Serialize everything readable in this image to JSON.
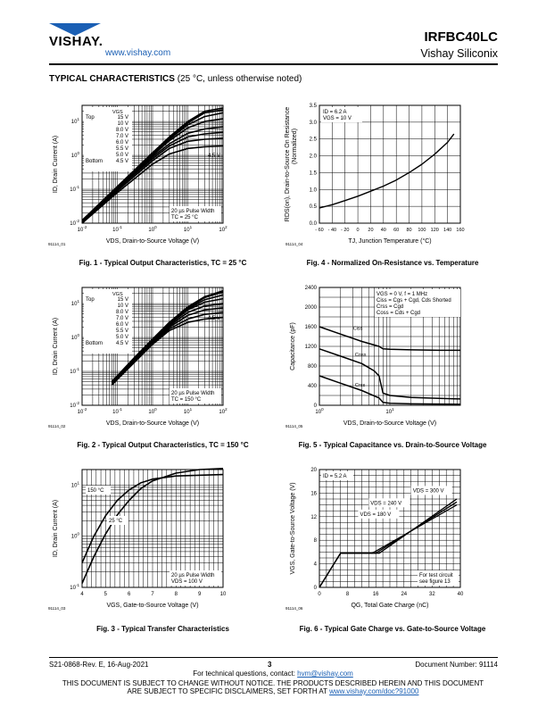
{
  "header": {
    "logo_text": "VISHAY.",
    "url": "www.vishay.com",
    "part_number": "IRFBC40LC",
    "company": "Vishay Siliconix"
  },
  "section": {
    "title": "TYPICAL CHARACTERISTICS",
    "subtitle": "(25 °C, unless otherwise noted)"
  },
  "figures": {
    "fig1": {
      "caption": "Fig. 1 - Typical Output Characteristics, TC = 25 °C",
      "code": "91114_01",
      "xlabel": "VDS, Drain-to-Source Voltage (V)",
      "ylabel": "ID, Drain Current (A)",
      "note": "20 µs Pulse Width\nTC = 25 °C"
    },
    "fig2": {
      "caption": "Fig. 2 - Typical Output Characteristics, TC = 150 °C",
      "code": "91114_02",
      "xlabel": "VDS, Drain-to-Source Voltage (V)",
      "ylabel": "ID, Drain Current (A)",
      "note": "20 µs Pulse Width\nTC = 150 °C"
    },
    "fig3": {
      "caption": "Fig. 3 - Typical Transfer Characteristics",
      "code": "91114_03",
      "xlabel": "VGS, Gate-to-Source Voltage (V)",
      "ylabel": "ID, Drain Current (A)",
      "note": "20 µs Pulse Width\nVDS = 100 V"
    },
    "fig4": {
      "caption": "Fig. 4 - Normalized On-Resistance vs. Temperature",
      "code": "91114_04",
      "xlabel": "TJ, Junction Temperature (°C)",
      "ylabel": "RDS(on), Drain-to-Source On Resistance (Normalized)",
      "note": "ID = 6.2 A\nVGS = 10 V"
    },
    "fig5": {
      "caption": "Fig. 5 - Typical Capacitance vs. Drain-to-Source Voltage",
      "code": "91114_05",
      "xlabel": "VDS, Drain-to-Source Voltage (V)",
      "ylabel": "Capacitance (pF)",
      "note": "VGS = 0 V, f = 1 MHz\nCiss = Cgs + Cgd, Cds Shorted\nCrss = Cgd\nCoss = Cds + Cgd"
    },
    "fig6": {
      "caption": "Fig. 6 - Typical Gate Charge vs. Gate-to-Source Voltage",
      "code": "91114_06",
      "xlabel": "QG, Total Gate Charge (nC)",
      "ylabel": "VGS, Gate-to-Source Voltage (V)",
      "note": "ID = 5.2 A",
      "note2": "For test circuit\nsee figure 13"
    }
  },
  "legend_vgs": {
    "header": "VGS",
    "top_label": "Top",
    "bottom_label": "Bottom",
    "values": [
      "15 V",
      "10 V",
      "8.0 V",
      "7.0 V",
      "6.0 V",
      "5.5 V",
      "5.0 V",
      "4.5 V"
    ],
    "curve_label": "4.5 V"
  },
  "chart_data": [
    {
      "id": "fig1",
      "type": "line",
      "title": "Typical Output Characteristics, TC = 25 °C",
      "xlabel": "VDS, Drain-to-Source Voltage (V)",
      "ylabel": "ID, Drain Current (A)",
      "xscale": "log",
      "yscale": "log",
      "xlim": [
        0.01,
        100
      ],
      "ylim": [
        0.01,
        30
      ],
      "x_ticks": [
        "10-2",
        "10-1",
        "100",
        "101",
        "102"
      ],
      "y_ticks": [
        "101",
        "100",
        "10-1",
        "10-2"
      ],
      "series": [
        {
          "name": "15 V",
          "x": [
            0.01,
            0.1,
            1,
            3,
            10,
            30,
            100
          ],
          "y": [
            0.012,
            0.12,
            1.2,
            3.5,
            10,
            20,
            25
          ]
        },
        {
          "name": "10 V",
          "x": [
            0.01,
            0.1,
            1,
            3,
            10,
            30,
            100
          ],
          "y": [
            0.012,
            0.12,
            1.1,
            3.3,
            9,
            18,
            22
          ]
        },
        {
          "name": "8.0 V",
          "x": [
            0.01,
            0.1,
            1,
            3,
            10,
            30,
            100
          ],
          "y": [
            0.011,
            0.11,
            1.05,
            3,
            8,
            14,
            18
          ]
        },
        {
          "name": "7.0 V",
          "x": [
            0.01,
            0.1,
            1,
            3,
            10,
            30,
            100
          ],
          "y": [
            0.011,
            0.11,
            1,
            2.7,
            6.5,
            10,
            12
          ]
        },
        {
          "name": "6.0 V",
          "x": [
            0.01,
            0.1,
            1,
            3,
            10,
            30,
            100
          ],
          "y": [
            0.01,
            0.1,
            0.9,
            2.2,
            4.5,
            6,
            7
          ]
        },
        {
          "name": "5.5 V",
          "x": [
            0.01,
            0.1,
            1,
            3,
            10,
            30,
            100
          ],
          "y": [
            0.01,
            0.1,
            0.8,
            1.9,
            3.5,
            4.3,
            4.8
          ]
        },
        {
          "name": "5.0 V",
          "x": [
            0.01,
            0.1,
            1,
            3,
            10,
            30,
            100
          ],
          "y": [
            0.01,
            0.09,
            0.7,
            1.6,
            2.6,
            3,
            3.2
          ]
        },
        {
          "name": "4.5 V",
          "x": [
            0.01,
            0.1,
            1,
            3,
            10,
            30,
            100
          ],
          "y": [
            0.01,
            0.08,
            0.55,
            1.1,
            1.6,
            1.8,
            1.9
          ]
        }
      ]
    },
    {
      "id": "fig2",
      "type": "line",
      "title": "Typical Output Characteristics, TC = 150 °C",
      "xlabel": "VDS, Drain-to-Source Voltage (V)",
      "ylabel": "ID, Drain Current (A)",
      "xscale": "log",
      "yscale": "log",
      "xlim": [
        0.01,
        100
      ],
      "ylim": [
        0.01,
        30
      ],
      "x_ticks": [
        "10-2",
        "10-1",
        "100",
        "101",
        "102"
      ],
      "y_ticks": [
        "101",
        "100",
        "10-1",
        "10-2"
      ],
      "series": [
        {
          "name": "15 V",
          "x": [
            0.07,
            0.3,
            1,
            3,
            10,
            30,
            100
          ],
          "y": [
            0.05,
            0.25,
            0.9,
            2.8,
            8,
            16,
            24
          ]
        },
        {
          "name": "10 V",
          "x": [
            0.07,
            0.3,
            1,
            3,
            10,
            30,
            100
          ],
          "y": [
            0.05,
            0.24,
            0.85,
            2.7,
            7.5,
            15,
            22
          ]
        },
        {
          "name": "8.0 V",
          "x": [
            0.07,
            0.3,
            1,
            3,
            10,
            30,
            100
          ],
          "y": [
            0.05,
            0.23,
            0.8,
            2.5,
            7,
            13,
            18
          ]
        },
        {
          "name": "7.0 V",
          "x": [
            0.07,
            0.3,
            1,
            3,
            10,
            30,
            100
          ],
          "y": [
            0.045,
            0.22,
            0.78,
            2.4,
            6.5,
            11,
            14
          ]
        },
        {
          "name": "6.0 V",
          "x": [
            0.07,
            0.3,
            1,
            3,
            10,
            30,
            100
          ],
          "y": [
            0.045,
            0.21,
            0.75,
            2.2,
            5.5,
            8.5,
            10
          ]
        },
        {
          "name": "5.5 V",
          "x": [
            0.07,
            0.3,
            1,
            3,
            10,
            30,
            100
          ],
          "y": [
            0.04,
            0.2,
            0.72,
            2,
            4.5,
            6.5,
            7.5
          ]
        },
        {
          "name": "5.0 V",
          "x": [
            0.07,
            0.3,
            1,
            3,
            10,
            30,
            100
          ],
          "y": [
            0.04,
            0.19,
            0.68,
            1.8,
            3.5,
            4.8,
            5.5
          ]
        },
        {
          "name": "4.5 V",
          "x": [
            0.07,
            0.3,
            1,
            3,
            10,
            30,
            100
          ],
          "y": [
            0.04,
            0.18,
            0.63,
            1.6,
            2.8,
            3.5,
            3.9
          ]
        }
      ]
    },
    {
      "id": "fig3",
      "type": "line",
      "title": "Typical Transfer Characteristics",
      "xlabel": "VGS, Gate-to-Source Voltage (V)",
      "ylabel": "ID, Drain Current (A)",
      "xscale": "linear",
      "yscale": "log",
      "xlim": [
        4,
        10
      ],
      "ylim": [
        0.1,
        20
      ],
      "x_ticks": [
        "4",
        "5",
        "6",
        "7",
        "8",
        "9",
        "10"
      ],
      "y_ticks": [
        "101",
        "100",
        "10-1"
      ],
      "series": [
        {
          "name": "150 °C",
          "x": [
            4,
            4.5,
            5,
            5.5,
            6,
            6.5,
            7,
            8,
            10
          ],
          "y": [
            0.3,
            1.0,
            2.5,
            5,
            8,
            11,
            13,
            15,
            16
          ]
        },
        {
          "name": "25 °C",
          "x": [
            4,
            4.5,
            5,
            5.5,
            6,
            6.5,
            7,
            8,
            9,
            10
          ],
          "y": [
            0.12,
            0.4,
            1.1,
            2.6,
            5,
            8.5,
            12,
            17,
            20,
            21
          ]
        }
      ]
    },
    {
      "id": "fig4",
      "type": "line",
      "title": "Normalized On-Resistance vs. Temperature",
      "xlabel": "TJ, Junction Temperature (°C)",
      "ylabel": "RDS(on), Drain-to-Source On Resistance (Normalized)",
      "xlim": [
        -60,
        160
      ],
      "ylim": [
        0,
        3.5
      ],
      "x_ticks": [
        "- 60",
        "- 40",
        "- 20",
        "0",
        "20",
        "40",
        "60",
        "80",
        "100",
        "120",
        "140",
        "160"
      ],
      "y_ticks": [
        "0.0",
        "0.5",
        "1.0",
        "1.5",
        "2.0",
        "2.5",
        "3.0",
        "3.5"
      ],
      "series": [
        {
          "name": "",
          "x": [
            -60,
            -40,
            -20,
            0,
            20,
            40,
            60,
            80,
            100,
            120,
            140,
            150
          ],
          "y": [
            0.45,
            0.55,
            0.67,
            0.8,
            0.95,
            1.1,
            1.28,
            1.5,
            1.75,
            2.05,
            2.4,
            2.65
          ]
        }
      ]
    },
    {
      "id": "fig5",
      "type": "line",
      "title": "Typical Capacitance vs. Drain-to-Source Voltage",
      "xlabel": "VDS, Drain-to-Source Voltage (V)",
      "ylabel": "Capacitance (pF)",
      "xscale": "log",
      "xlim": [
        1,
        100
      ],
      "ylim": [
        0,
        2400
      ],
      "x_ticks": [
        "100",
        "101"
      ],
      "y_ticks": [
        "0",
        "400",
        "800",
        "1200",
        "1600",
        "2000",
        "2400"
      ],
      "series": [
        {
          "name": "Ciss",
          "x": [
            1,
            2,
            4,
            7,
            8,
            10,
            20,
            50,
            100
          ],
          "y": [
            1600,
            1450,
            1300,
            1200,
            1150,
            1140,
            1130,
            1120,
            1120
          ]
        },
        {
          "name": "Coss",
          "x": [
            1,
            2,
            4,
            6,
            7,
            8,
            10,
            20,
            50,
            100
          ],
          "y": [
            1150,
            1000,
            850,
            700,
            600,
            250,
            200,
            160,
            140,
            130
          ]
        },
        {
          "name": "Crss",
          "x": [
            1,
            2,
            4,
            7,
            8,
            10,
            20,
            50,
            100
          ],
          "y": [
            600,
            450,
            300,
            150,
            60,
            40,
            30,
            25,
            20
          ]
        }
      ]
    },
    {
      "id": "fig6",
      "type": "line",
      "title": "Typical Gate Charge vs. Gate-to-Source Voltage",
      "xlabel": "QG, Total Gate Charge (nC)",
      "ylabel": "VGS, Gate-to-Source Voltage (V)",
      "xlim": [
        0,
        40
      ],
      "ylim": [
        0,
        20
      ],
      "x_ticks": [
        "0",
        "8",
        "16",
        "24",
        "32",
        "40"
      ],
      "y_ticks": [
        "0",
        "4",
        "8",
        "12",
        "16",
        "20"
      ],
      "series": [
        {
          "name": "VDS = 300 V",
          "x": [
            0,
            6,
            17,
            39
          ],
          "y": [
            0,
            5.8,
            5.8,
            15
          ]
        },
        {
          "name": "VDS = 240 V",
          "x": [
            0,
            6,
            16,
            39
          ],
          "y": [
            0,
            5.8,
            5.8,
            14.5
          ]
        },
        {
          "name": "VDS = 180 V",
          "x": [
            0,
            6,
            15,
            39
          ],
          "y": [
            0,
            5.8,
            5.8,
            14
          ]
        }
      ]
    }
  ],
  "footer": {
    "rev": "S21-0868-Rev. E, 16-Aug-2021",
    "page": "3",
    "doc_number": "Document Number: 91114",
    "contact_prefix": "For technical questions, contact:",
    "contact_email": "hvm@vishay.com",
    "disclaimer_line1": "THIS DOCUMENT IS SUBJECT TO CHANGE WITHOUT NOTICE. THE PRODUCTS DESCRIBED HEREIN AND THIS DOCUMENT",
    "disclaimer_line2_prefix": "ARE SUBJECT TO SPECIFIC DISCLAIMERS, SET FORTH AT",
    "disclaimer_link": "www.vishay.com/doc?91000"
  }
}
